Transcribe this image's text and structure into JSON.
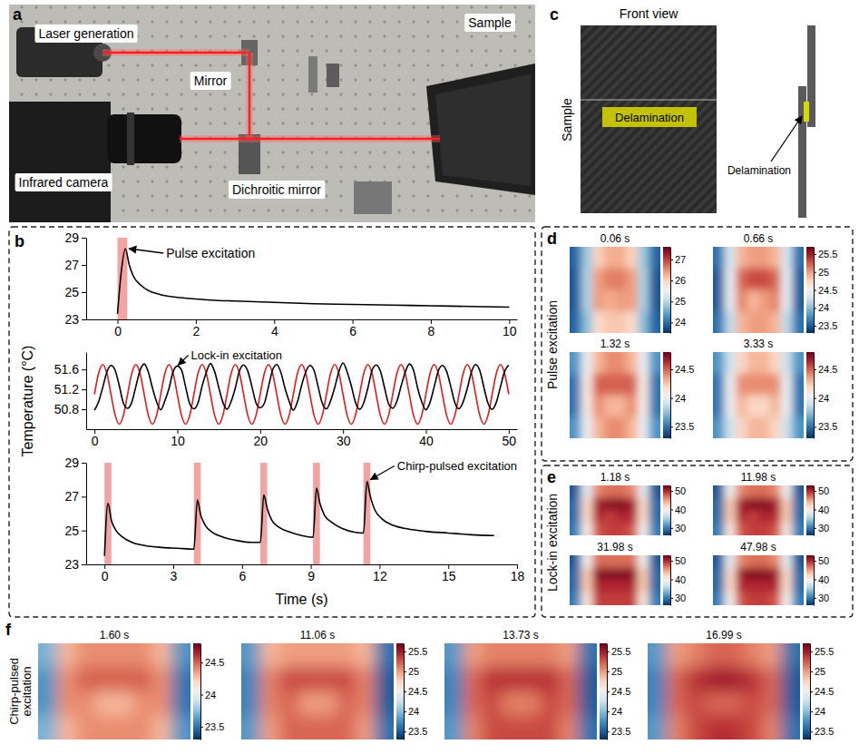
{
  "figure": {
    "letters": [
      "a",
      "b",
      "c",
      "d",
      "e",
      "f"
    ],
    "a_labels": [
      "Laser generation",
      "Mirror",
      "Sample",
      "Infrared camera",
      "Dichroitic mirror"
    ],
    "b_ylabel": "Temperature (°C)",
    "b_xlabel": "Time (s)",
    "c_title": "Front view",
    "c_side": "Sample",
    "c_delamination": [
      "Delamination",
      "Delamination"
    ],
    "row_labels": [
      "Pulse excitation",
      "Lock-in excitation",
      "Chirp-pulsed excitation"
    ]
  },
  "chart_data": [
    {
      "type": "line",
      "annotation": "Pulse excitation",
      "x": [
        0,
        0.1,
        0.2,
        0.3,
        0.4,
        0.6,
        0.8,
        1,
        1.3,
        1.6,
        2,
        2.5,
        3,
        3.5,
        4,
        5,
        6,
        7,
        8,
        9,
        10
      ],
      "series": [
        {
          "color": "#000000",
          "values": [
            23.4,
            26.6,
            28.2,
            27.0,
            26.2,
            25.5,
            25.1,
            24.9,
            24.7,
            24.6,
            24.5,
            24.4,
            24.35,
            24.3,
            24.25,
            24.15,
            24.1,
            24.05,
            24.0,
            23.95,
            23.9
          ]
        }
      ],
      "excitation": [
        [
          0,
          0.25
        ]
      ],
      "xlim": [
        -0.8,
        10.2
      ],
      "xticks": [
        0,
        2,
        4,
        6,
        8,
        10
      ],
      "ylim": [
        23,
        29
      ],
      "yticks": [
        23,
        25,
        27,
        29
      ]
    },
    {
      "type": "line",
      "annotation": "Lock-in excitation",
      "x": [
        0,
        0.5,
        1,
        1.5,
        2,
        2.5,
        3,
        3.5,
        4,
        4.5,
        5,
        5.5,
        6,
        6.5,
        7,
        7.5,
        8,
        8.5,
        9,
        9.5,
        10,
        10.5,
        11,
        11.5,
        12,
        12.5,
        13,
        13.5,
        14,
        14.5,
        15,
        15.5,
        16,
        16.5,
        17,
        17.5,
        18,
        18.5,
        19,
        19.5,
        20,
        20.5,
        21,
        21.5,
        22,
        22.5,
        23,
        23.5,
        24,
        24.5,
        25,
        25.5,
        26,
        26.5,
        27,
        27.5,
        28,
        28.5,
        29,
        29.5,
        30,
        30.5,
        31,
        31.5,
        32,
        32.5,
        33,
        33.5,
        34,
        34.5,
        35,
        35.5,
        36,
        36.5,
        37,
        37.5,
        38,
        38.5,
        39,
        39.5,
        40,
        40.5,
        41,
        41.5,
        42,
        42.5,
        43,
        43.5,
        44,
        44.5,
        45,
        45.5,
        46,
        46.5,
        47,
        47.5,
        48,
        48.5,
        49,
        49.5,
        50
      ],
      "series": [
        {
          "color": "#e8161b",
          "values": [
            51.1,
            51.52,
            51.7,
            51.52,
            51.1,
            50.68,
            50.5,
            50.68,
            51.1,
            51.52,
            51.7,
            51.52,
            51.1,
            50.68,
            50.5,
            50.68,
            51.1,
            51.52,
            51.7,
            51.52,
            51.1,
            50.68,
            50.5,
            50.68,
            51.1,
            51.52,
            51.7,
            51.52,
            51.1,
            50.68,
            50.5,
            50.68,
            51.1,
            51.52,
            51.7,
            51.52,
            51.1,
            50.68,
            50.5,
            50.68,
            51.1,
            51.52,
            51.7,
            51.52,
            51.1,
            50.68,
            50.5,
            50.68,
            51.1,
            51.52,
            51.7,
            51.52,
            51.1,
            50.68,
            50.5,
            50.68,
            51.1,
            51.52,
            51.7,
            51.52,
            51.1,
            50.68,
            50.5,
            50.68,
            51.1,
            51.52,
            51.7,
            51.52,
            51.1,
            50.68,
            50.5,
            50.68,
            51.1,
            51.52,
            51.7,
            51.52,
            51.1,
            50.68,
            50.5,
            50.68,
            51.1,
            51.52,
            51.7,
            51.52,
            51.1,
            50.68,
            50.5,
            50.68,
            51.1,
            51.52,
            51.7,
            51.52,
            51.1,
            50.68,
            50.5,
            50.68,
            51.1,
            51.52,
            51.7,
            51.52,
            51.1
          ]
        },
        {
          "color": "#000000",
          "values": [
            50.78,
            50.95,
            51.24,
            51.55,
            51.68,
            51.58,
            51.27,
            50.92,
            50.82,
            50.94,
            51.26,
            51.58,
            51.71,
            51.55,
            51.23,
            50.95,
            50.79,
            50.97,
            51.22,
            51.56,
            51.67,
            51.59,
            51.25,
            50.91,
            50.81,
            50.93,
            51.27,
            51.54,
            51.72,
            51.56,
            51.24,
            50.94,
            50.8,
            50.96,
            51.23,
            51.57,
            51.69,
            51.57,
            51.26,
            50.93,
            50.83,
            50.92,
            51.25,
            51.59,
            51.7,
            51.54,
            51.22,
            50.96,
            50.78,
            50.95,
            51.28,
            51.55,
            51.68,
            51.58,
            51.25,
            50.92,
            50.81,
            50.97,
            51.24,
            51.56,
            51.73,
            51.55,
            51.27,
            50.94,
            50.8,
            50.93,
            51.23,
            51.58,
            51.69,
            51.57,
            51.24,
            50.91,
            50.82,
            50.96,
            51.26,
            51.54,
            51.71,
            51.59,
            51.23,
            50.95,
            50.79,
            50.94,
            51.25,
            51.57,
            51.68,
            51.56,
            51.26,
            50.93,
            50.81,
            50.95,
            51.22,
            51.55,
            51.7,
            51.58,
            51.24,
            50.92,
            50.8,
            50.94,
            51.25,
            51.56,
            51.69
          ]
        }
      ],
      "xlim": [
        -1,
        51
      ],
      "xticks": [
        0,
        10,
        20,
        30,
        40,
        50
      ],
      "ylim": [
        50.4,
        51.95
      ],
      "yticks": [
        50.8,
        51.2,
        51.6
      ]
    },
    {
      "type": "line",
      "annotation": "Chirp-pulsed excitation",
      "x": [
        0,
        0.15,
        0.3,
        0.5,
        0.8,
        1.2,
        1.8,
        2.5,
        3.2,
        3.9,
        4.05,
        4.2,
        4.4,
        4.7,
        5.2,
        5.8,
        6.4,
        6.8,
        6.95,
        7.1,
        7.3,
        7.6,
        8.1,
        8.6,
        9.1,
        9.25,
        9.4,
        9.6,
        9.9,
        10.4,
        10.9,
        11.3,
        11.45,
        11.6,
        11.8,
        12.1,
        12.6,
        13.2,
        14,
        15,
        16,
        17
      ],
      "series": [
        {
          "color": "#000000",
          "values": [
            23.5,
            26.6,
            25.6,
            25.0,
            24.6,
            24.3,
            24.1,
            24.0,
            23.95,
            23.9,
            26.8,
            25.9,
            25.3,
            24.9,
            24.6,
            24.4,
            24.3,
            24.3,
            27.1,
            26.3,
            25.6,
            25.2,
            24.9,
            24.7,
            24.6,
            27.5,
            26.6,
            25.9,
            25.5,
            25.1,
            24.9,
            24.85,
            27.9,
            27.0,
            26.2,
            25.7,
            25.3,
            25.1,
            24.95,
            24.85,
            24.75,
            24.7
          ]
        }
      ],
      "excitation": [
        [
          0,
          0.3
        ],
        [
          3.9,
          4.2
        ],
        [
          6.8,
          7.1
        ],
        [
          9.1,
          9.4
        ],
        [
          11.3,
          11.6
        ]
      ],
      "xlim": [
        -0.8,
        18
      ],
      "xticks": [
        0,
        3,
        6,
        9,
        12,
        15,
        18
      ],
      "ylim": [
        23,
        29
      ],
      "yticks": [
        23,
        25,
        27,
        29
      ]
    },
    {
      "type": "heatmap",
      "title": "0.06 s",
      "cells": [
        [
          23.9,
          24.8,
          26.0,
          26.3,
          26.3,
          26.0,
          24.8,
          23.9
        ],
        [
          23.8,
          24.9,
          26.4,
          26.6,
          26.6,
          26.4,
          24.9,
          23.8
        ],
        [
          23.8,
          24.9,
          26.4,
          26.3,
          26.4,
          26.4,
          24.9,
          23.8
        ],
        [
          23.9,
          24.7,
          25.9,
          26.1,
          26.1,
          25.9,
          24.7,
          23.9
        ]
      ],
      "colorbar_lim": [
        23.5,
        27.6
      ],
      "colorbar_ticks": [
        24,
        25,
        26,
        27
      ]
    },
    {
      "type": "heatmap",
      "title": "0.66 s",
      "cells": [
        [
          23.6,
          24.3,
          24.9,
          25.0,
          25.0,
          24.9,
          24.3,
          23.6
        ],
        [
          23.5,
          24.4,
          25.2,
          25.3,
          25.3,
          25.2,
          24.4,
          23.5
        ],
        [
          23.5,
          24.4,
          25.1,
          24.9,
          25.0,
          25.1,
          24.4,
          23.5
        ],
        [
          23.6,
          24.2,
          24.9,
          25.0,
          25.0,
          24.9,
          24.2,
          23.6
        ]
      ],
      "colorbar_lim": [
        23.3,
        25.7
      ],
      "colorbar_ticks": [
        23.5,
        24,
        24.5,
        25,
        25.5
      ]
    },
    {
      "type": "heatmap",
      "title": "1.32 s",
      "cells": [
        [
          23.6,
          24.0,
          24.3,
          24.4,
          24.4,
          24.3,
          24.0,
          23.6
        ],
        [
          23.5,
          24.1,
          24.5,
          24.5,
          24.5,
          24.5,
          24.1,
          23.5
        ],
        [
          23.5,
          24.1,
          24.4,
          24.3,
          24.3,
          24.4,
          24.1,
          23.5
        ],
        [
          23.6,
          24.0,
          24.3,
          24.4,
          24.4,
          24.3,
          24.0,
          23.6
        ]
      ],
      "colorbar_lim": [
        23.3,
        24.8
      ],
      "colorbar_ticks": [
        23.5,
        24,
        24.5
      ]
    },
    {
      "type": "heatmap",
      "title": "3.33 s",
      "cells": [
        [
          23.6,
          23.9,
          24.2,
          24.3,
          24.3,
          24.2,
          23.9,
          23.6
        ],
        [
          23.5,
          24.0,
          24.4,
          24.4,
          24.4,
          24.4,
          24.0,
          23.5
        ],
        [
          23.5,
          24.0,
          24.3,
          24.2,
          24.2,
          24.3,
          24.0,
          23.5
        ],
        [
          23.6,
          23.9,
          24.2,
          24.3,
          24.3,
          24.2,
          23.9,
          23.6
        ]
      ],
      "colorbar_lim": [
        23.3,
        24.8
      ],
      "colorbar_ticks": [
        23.5,
        24,
        24.5
      ]
    },
    {
      "type": "heatmap",
      "title": "1.18 s",
      "cells": [
        [
          28,
          38,
          46,
          47,
          47,
          46,
          38,
          28
        ],
        [
          29,
          42,
          51,
          52,
          52,
          51,
          42,
          29
        ],
        [
          29,
          42,
          50,
          49,
          50,
          50,
          42,
          29
        ],
        [
          30,
          40,
          48,
          49,
          49,
          48,
          40,
          30
        ]
      ],
      "colorbar_lim": [
        26,
        53
      ],
      "colorbar_ticks": [
        30,
        40,
        50
      ]
    },
    {
      "type": "heatmap",
      "title": "11.98 s",
      "cells": [
        [
          28,
          39,
          46,
          47,
          47,
          46,
          39,
          28
        ],
        [
          29,
          43,
          51,
          52,
          52,
          51,
          43,
          29
        ],
        [
          29,
          43,
          50,
          49,
          50,
          50,
          43,
          29
        ],
        [
          30,
          41,
          48,
          49,
          49,
          48,
          41,
          30
        ]
      ],
      "colorbar_lim": [
        26,
        53
      ],
      "colorbar_ticks": [
        30,
        40,
        50
      ]
    },
    {
      "type": "heatmap",
      "title": "31.98 s",
      "cells": [
        [
          28,
          39,
          47,
          47,
          47,
          47,
          39,
          28
        ],
        [
          29,
          43,
          52,
          52,
          52,
          52,
          43,
          29
        ],
        [
          29,
          43,
          50,
          50,
          50,
          50,
          43,
          29
        ],
        [
          30,
          41,
          49,
          49,
          49,
          49,
          41,
          30
        ]
      ],
      "colorbar_lim": [
        26,
        53
      ],
      "colorbar_ticks": [
        30,
        40,
        50
      ]
    },
    {
      "type": "heatmap",
      "title": "47.98 s",
      "cells": [
        [
          28,
          38,
          46,
          47,
          47,
          46,
          38,
          28
        ],
        [
          29,
          42,
          51,
          52,
          52,
          51,
          42,
          29
        ],
        [
          29,
          42,
          50,
          50,
          50,
          50,
          42,
          29
        ],
        [
          30,
          40,
          48,
          49,
          49,
          48,
          40,
          30
        ]
      ],
      "colorbar_lim": [
        26,
        53
      ],
      "colorbar_ticks": [
        30,
        40,
        50
      ]
    },
    {
      "type": "heatmap",
      "title": "1.60 s",
      "cells": [
        [
          23.7,
          24.3,
          24.4,
          24.4,
          24.4,
          24.4,
          24.3,
          23.6
        ],
        [
          23.6,
          24.4,
          24.5,
          24.5,
          24.5,
          24.5,
          24.4,
          23.5
        ],
        [
          23.6,
          24.4,
          24.4,
          24.3,
          24.3,
          24.4,
          24.4,
          23.5
        ],
        [
          23.7,
          24.3,
          24.4,
          24.4,
          24.4,
          24.4,
          24.3,
          23.6
        ]
      ],
      "colorbar_lim": [
        23.3,
        24.8
      ],
      "colorbar_ticks": [
        23.5,
        24,
        24.5
      ]
    },
    {
      "type": "heatmap",
      "title": "11.06 s",
      "cells": [
        [
          23.8,
          24.9,
          25.0,
          25.0,
          25.0,
          25.0,
          24.9,
          23.6
        ],
        [
          23.7,
          25.1,
          25.3,
          25.3,
          25.3,
          25.3,
          25.1,
          23.5
        ],
        [
          23.7,
          25.1,
          25.2,
          25.0,
          25.0,
          25.2,
          25.1,
          23.5
        ],
        [
          23.8,
          25.0,
          25.2,
          25.2,
          25.2,
          25.2,
          25.0,
          23.6
        ]
      ],
      "colorbar_lim": [
        23.3,
        25.7
      ],
      "colorbar_ticks": [
        23.5,
        24,
        24.5,
        25,
        25.5
      ]
    },
    {
      "type": "heatmap",
      "title": "13.73 s",
      "cells": [
        [
          23.8,
          25.0,
          25.1,
          25.1,
          25.1,
          25.1,
          25.0,
          23.6
        ],
        [
          23.7,
          25.2,
          25.4,
          25.4,
          25.4,
          25.4,
          25.2,
          23.5
        ],
        [
          23.7,
          25.2,
          25.3,
          25.1,
          25.1,
          25.3,
          25.2,
          23.5
        ],
        [
          23.8,
          25.1,
          25.3,
          25.3,
          25.3,
          25.3,
          25.1,
          23.6
        ]
      ],
      "colorbar_lim": [
        23.3,
        25.7
      ],
      "colorbar_ticks": [
        23.5,
        24,
        24.5,
        25,
        25.5
      ]
    },
    {
      "type": "heatmap",
      "title": "16.99 s",
      "cells": [
        [
          23.8,
          25.0,
          25.1,
          25.2,
          25.2,
          25.1,
          25.0,
          23.6
        ],
        [
          23.7,
          25.2,
          25.4,
          25.5,
          25.5,
          25.4,
          25.2,
          23.5
        ],
        [
          23.7,
          25.2,
          25.3,
          25.2,
          25.2,
          25.3,
          25.2,
          23.5
        ],
        [
          23.8,
          25.1,
          25.3,
          25.4,
          25.4,
          25.3,
          25.1,
          23.6
        ]
      ],
      "colorbar_lim": [
        23.3,
        25.7
      ],
      "colorbar_ticks": [
        23.5,
        24,
        24.5,
        25,
        25.5
      ]
    }
  ]
}
